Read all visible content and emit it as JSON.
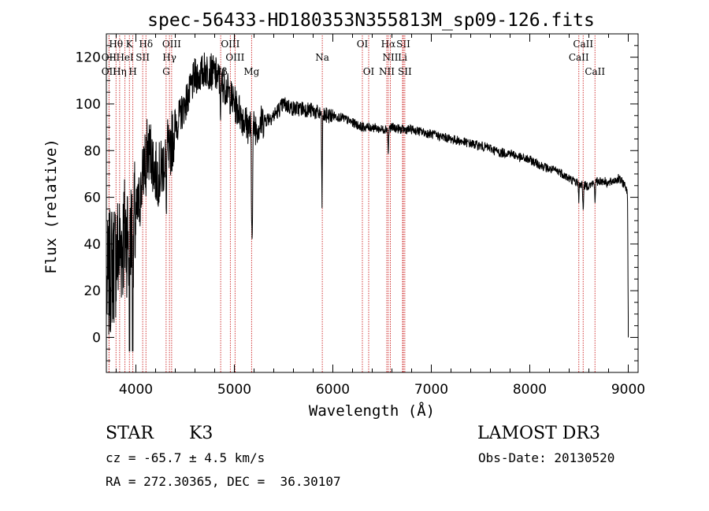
{
  "chart_data": {
    "type": "line",
    "title": "spec-56433-HD180353N355813M_sp09-126.fits",
    "xlabel": "Wavelength (Å)",
    "ylabel": "Flux (relative)",
    "xlim": [
      3700,
      9100
    ],
    "ylim": [
      -15,
      130
    ],
    "x_ticks": [
      4000,
      5000,
      6000,
      7000,
      8000,
      9000
    ],
    "y_ticks": [
      0,
      20,
      40,
      60,
      80,
      100,
      120
    ],
    "spectrum_envelope": {
      "x": [
        3700,
        3750,
        3800,
        3850,
        3900,
        3950,
        4000,
        4050,
        4100,
        4150,
        4200,
        4250,
        4300,
        4350,
        4400,
        4450,
        4500,
        4550,
        4600,
        4650,
        4700,
        4750,
        4800,
        4850,
        4900,
        4950,
        5000,
        5050,
        5100,
        5150,
        5200,
        5250,
        5300,
        5400,
        5500,
        5600,
        5700,
        5800,
        5900,
        6000,
        6100,
        6200,
        6300,
        6400,
        6500,
        6600,
        6700,
        6800,
        6900,
        7000,
        7100,
        7200,
        7300,
        7400,
        7500,
        7600,
        7700,
        7800,
        7900,
        8000,
        8100,
        8200,
        8300,
        8400,
        8450,
        8500,
        8550,
        8600,
        8650,
        8700,
        8750,
        8800,
        8850,
        8900,
        8950,
        8980,
        9000
      ],
      "flux": [
        20,
        30,
        35,
        40,
        45,
        45,
        50,
        62,
        80,
        80,
        70,
        70,
        78,
        82,
        90,
        95,
        100,
        105,
        112,
        112,
        115,
        114,
        113,
        110,
        108,
        104,
        100,
        97,
        93,
        90,
        90,
        91,
        93,
        95,
        100,
        98,
        98,
        97,
        95,
        95,
        94,
        92,
        90,
        90,
        89,
        90,
        89,
        89,
        88,
        87,
        86,
        85,
        84,
        83,
        82,
        81,
        79,
        79,
        77,
        76,
        74,
        72,
        71,
        68,
        67,
        66,
        65,
        65,
        66,
        67,
        67,
        66,
        67,
        68,
        66,
        64,
        62
      ]
    },
    "absorption_features": [
      {
        "x": 3934,
        "depth": 60
      },
      {
        "x": 3969,
        "depth": 55
      },
      {
        "x": 4102,
        "depth": 20
      },
      {
        "x": 4307,
        "depth": 25
      },
      {
        "x": 4341,
        "depth": 15
      },
      {
        "x": 4861,
        "depth": 15
      },
      {
        "x": 5175,
        "depth": 42
      },
      {
        "x": 5183,
        "depth": 40
      },
      {
        "x": 5890,
        "depth": 38
      },
      {
        "x": 6563,
        "depth": 12
      },
      {
        "x": 8498,
        "depth": 8
      },
      {
        "x": 8542,
        "depth": 12
      },
      {
        "x": 8662,
        "depth": 8
      },
      {
        "x": 9000,
        "depth": 55
      }
    ],
    "spectral_lines": [
      {
        "label": "Hθ",
        "x": 3798,
        "row": 1
      },
      {
        "label": "K",
        "x": 3934,
        "row": 1
      },
      {
        "label": "Hδ",
        "x": 4102,
        "row": 1
      },
      {
        "label": "OIII",
        "x": 4363,
        "row": 1
      },
      {
        "label": "OIII",
        "x": 4959,
        "row": 1
      },
      {
        "label": "OI",
        "x": 6300,
        "row": 1
      },
      {
        "label": "Hα",
        "x": 6563,
        "row": 1
      },
      {
        "label": "SII",
        "x": 6716,
        "row": 1
      },
      {
        "label": "CaII",
        "x": 8542,
        "row": 1
      },
      {
        "label": "OII",
        "x": 3727,
        "row": 2
      },
      {
        "label": "HeI",
        "x": 3889,
        "row": 2
      },
      {
        "label": "SII",
        "x": 4069,
        "row": 2
      },
      {
        "label": "Hγ",
        "x": 4341,
        "row": 2
      },
      {
        "label": "OIII",
        "x": 5007,
        "row": 2
      },
      {
        "label": "Na",
        "x": 5893,
        "row": 2
      },
      {
        "label": "NII",
        "x": 6584,
        "row": 2
      },
      {
        "label": "Li",
        "x": 6708,
        "row": 2
      },
      {
        "label": "CaII",
        "x": 8498,
        "row": 2
      },
      {
        "label": "OII",
        "x": 3727,
        "row": 3
      },
      {
        "label": "Hη",
        "x": 3835,
        "row": 3
      },
      {
        "label": "H",
        "x": 3969,
        "row": 3
      },
      {
        "label": "G",
        "x": 4307,
        "row": 3
      },
      {
        "label": "Hβ",
        "x": 4861,
        "row": 3
      },
      {
        "label": "Mg",
        "x": 5175,
        "row": 3
      },
      {
        "label": "OI",
        "x": 6364,
        "row": 3
      },
      {
        "label": "NII",
        "x": 6548,
        "row": 3
      },
      {
        "label": "SII",
        "x": 6731,
        "row": 3
      },
      {
        "label": "CaII",
        "x": 8662,
        "row": 3
      }
    ]
  },
  "info": {
    "object_class": "STAR",
    "subclass": "K3",
    "survey": "LAMOST DR3",
    "cz": "cz = -65.7 ± 4.5 km/s",
    "obs_date": "Obs-Date: 20130520",
    "coords": "RA = 272.30365, DEC =  36.30107"
  }
}
